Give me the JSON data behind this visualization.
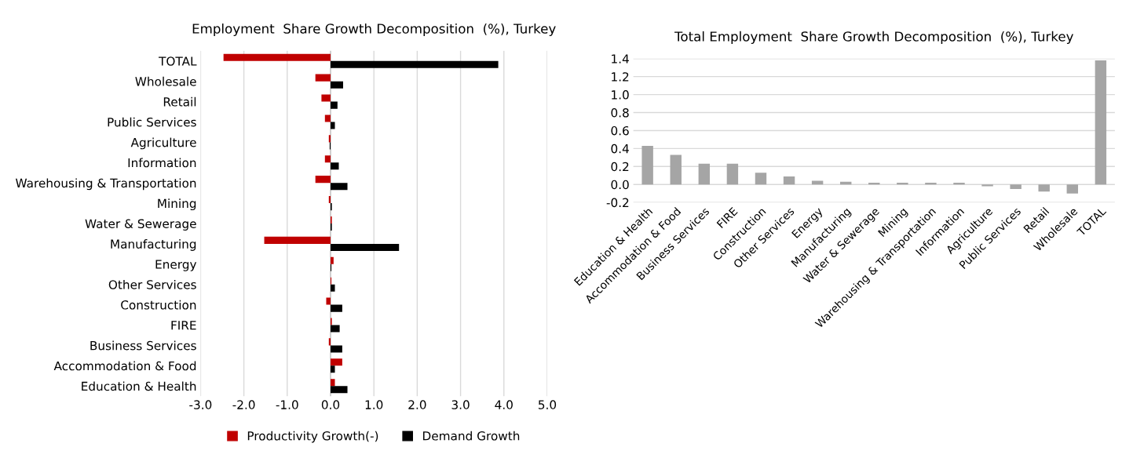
{
  "chart_data": [
    {
      "type": "bar",
      "orientation": "horizontal",
      "title": "Employment  Share Growth Decomposition  (%), Turkey",
      "categories": [
        "TOTAL",
        "Wholesale",
        "Retail",
        "Public Services",
        "Agriculture",
        "Information",
        "Warehousing & Transportation",
        "Mining",
        "Water & Sewerage",
        "Manufacturing",
        "Energy",
        "Other Services",
        "Construction",
        "FIRE",
        "Business Services",
        "Accommodation & Food",
        "Education & Health"
      ],
      "series": [
        {
          "name": "Productivity Growth(-)",
          "color": "#c00000",
          "values": [
            -2.47,
            -0.35,
            -0.21,
            -0.13,
            -0.04,
            -0.13,
            -0.35,
            -0.04,
            0.03,
            -1.53,
            0.07,
            0.02,
            -0.1,
            0.03,
            -0.04,
            0.27,
            0.1
          ]
        },
        {
          "name": "Demand Growth",
          "color": "#000000",
          "values": [
            3.87,
            0.29,
            0.16,
            0.1,
            -0.02,
            0.19,
            0.39,
            0.03,
            0.03,
            1.58,
            0.02,
            0.1,
            0.27,
            0.21,
            0.27,
            0.1,
            0.39
          ]
        }
      ],
      "xlim": [
        -3.0,
        5.0
      ],
      "xticks": [
        {
          "value": -3,
          "label": "-3.0"
        },
        {
          "value": -2,
          "label": "-2.0"
        },
        {
          "value": -1,
          "label": "-1.0"
        },
        {
          "value": 0,
          "label": "0.0"
        },
        {
          "value": 1,
          "label": "1.0"
        },
        {
          "value": 2,
          "label": "2.0"
        },
        {
          "value": 3,
          "label": "3.0"
        },
        {
          "value": 4,
          "label": "4.0"
        },
        {
          "value": 5,
          "label": "5.0"
        }
      ],
      "grid": "x",
      "legend": "bottom"
    },
    {
      "type": "bar",
      "title": "Total Employment  Share Growth Decomposition  (%), Turkey",
      "categories": [
        "Education & Health",
        "Accommodation & Food",
        "Business Services",
        "FIRE",
        "Construction",
        "Other Services",
        "Energy",
        "Manufacturing",
        "Water & Sewerage",
        "Mining",
        "Warehousing & Transportation",
        "Information",
        "Agriculture",
        "Public Services",
        "Retail",
        "Wholesale",
        "TOTAL"
      ],
      "series": [
        {
          "color": "#a5a5a5",
          "values": [
            0.43,
            0.33,
            0.23,
            0.23,
            0.13,
            0.09,
            0.04,
            0.03,
            0.02,
            0.02,
            0.02,
            0.02,
            -0.02,
            -0.05,
            -0.08,
            -0.1,
            1.38
          ]
        }
      ],
      "ylim": [
        -0.2,
        1.4
      ],
      "yticks": [
        {
          "value": -0.2,
          "label": "-0.2"
        },
        {
          "value": 0,
          "label": "0.0"
        },
        {
          "value": 0.2,
          "label": "0.2"
        },
        {
          "value": 0.4,
          "label": "0.4"
        },
        {
          "value": 0.6,
          "label": "0.6"
        },
        {
          "value": 0.8,
          "label": "0.8"
        },
        {
          "value": 1.0,
          "label": "1.0"
        },
        {
          "value": 1.2,
          "label": "1.2"
        },
        {
          "value": 1.4,
          "label": "1.4"
        }
      ],
      "grid": "y"
    }
  ]
}
